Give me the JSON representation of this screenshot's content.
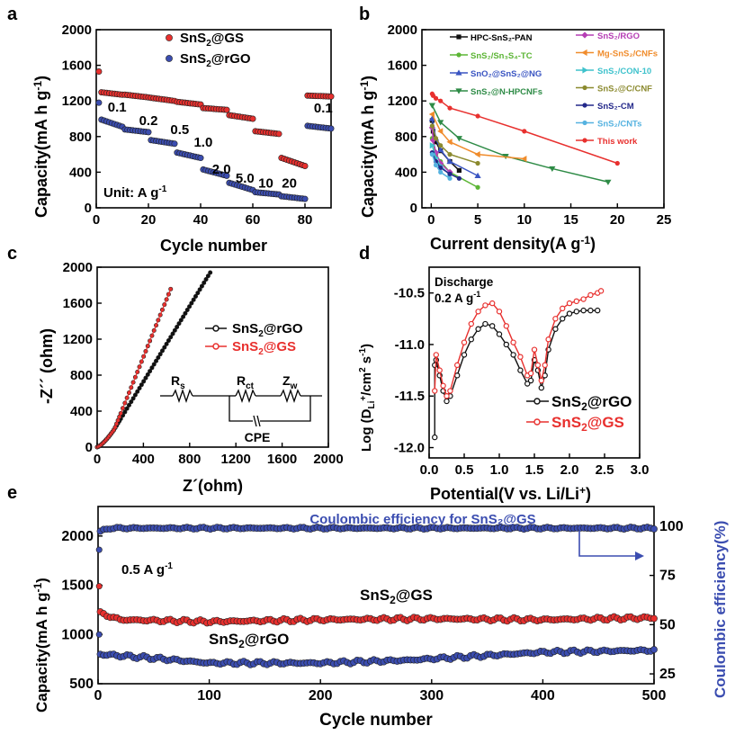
{
  "chart_data": [
    {
      "panel": "a",
      "type": "scatter",
      "xlabel": "Cycle number",
      "ylabel": "Capacity(mA h g",
      "ylabel_sup": "-1",
      "ylabel_end": ")",
      "xlim": [
        0,
        90
      ],
      "ylim": [
        0,
        2000
      ],
      "xticks": [
        "0",
        "20",
        "40",
        "60",
        "80"
      ],
      "yticks": [
        "0",
        "400",
        "800",
        "1200",
        "1600",
        "2000"
      ],
      "legend_position": "top-right",
      "unit_label": "Unit: A g",
      "unit_sup": "-1",
      "rate_labels": [
        "0.1",
        "0.2",
        "0.5",
        "1.0",
        "2.0",
        "5.0",
        "10",
        "20",
        "0.1"
      ],
      "rate_label_pos": [
        [
          8,
          1080
        ],
        [
          20,
          930
        ],
        [
          32,
          830
        ],
        [
          41,
          685
        ],
        [
          48,
          385
        ],
        [
          57,
          285
        ],
        [
          65,
          225
        ],
        [
          74,
          225
        ],
        [
          87,
          1070
        ]
      ],
      "rate_steps": [
        {
          "start": 1,
          "end": 10
        },
        {
          "start": 11,
          "end": 20
        },
        {
          "start": 21,
          "end": 30
        },
        {
          "start": 31,
          "end": 40
        },
        {
          "start": 41,
          "end": 50
        },
        {
          "start": 51,
          "end": 60
        },
        {
          "start": 61,
          "end": 70
        },
        {
          "start": 71,
          "end": 80
        },
        {
          "start": 81,
          "end": 90
        }
      ],
      "series": [
        {
          "name_main": "SnS",
          "name_sub": "2",
          "name_rest": "@GS",
          "color": "#e8302e",
          "legend_marker_color": "#e8302e",
          "first_value": 1530,
          "steps": [
            [
              1300,
              1270
            ],
            [
              1270,
              1240
            ],
            [
              1235,
              1200
            ],
            [
              1190,
              1160
            ],
            [
              1120,
              1100
            ],
            [
              1040,
              1000
            ],
            [
              860,
              830
            ],
            [
              560,
              470
            ],
            [
              1260,
              1250
            ]
          ]
        },
        {
          "name_main": "SnS",
          "name_sub": "2",
          "name_rest": "@rGO",
          "color": "#3b4db0",
          "legend_marker_color": "#3b4db0",
          "first_value": 1180,
          "steps": [
            [
              1000,
              910
            ],
            [
              880,
              850
            ],
            [
              760,
              720
            ],
            [
              620,
              560
            ],
            [
              430,
              360
            ],
            [
              280,
              200
            ],
            [
              175,
              150
            ],
            [
              130,
              100
            ],
            [
              920,
              890
            ]
          ]
        }
      ]
    },
    {
      "panel": "b",
      "type": "line",
      "xlabel": "Current density(A g",
      "xlabel_sup": "-1",
      "xlabel_end": ")",
      "ylabel": "Capacity(mA h g",
      "ylabel_sup": "-1",
      "ylabel_end": ")",
      "xlim": [
        -1,
        25
      ],
      "ylim": [
        0,
        2000
      ],
      "xticks": [
        "0",
        "5",
        "10",
        "15",
        "20",
        "25"
      ],
      "yticks": [
        "0",
        "400",
        "800",
        "1200",
        "1600",
        "2000"
      ],
      "series": [
        {
          "name": "HPC-SnS₂-PAN",
          "color": "#111111",
          "marker": "square",
          "x": [
            0.1,
            0.2,
            0.5,
            1,
            2,
            3
          ],
          "y": [
            980,
            860,
            740,
            640,
            520,
            420
          ]
        },
        {
          "name": "SnS₂/Sn₃S₄-TC",
          "color": "#5cb535",
          "marker": "circle",
          "x": [
            0.1,
            0.5,
            1,
            2,
            5
          ],
          "y": [
            780,
            600,
            520,
            400,
            230
          ]
        },
        {
          "name": "SnO₂@SnS₂@NG",
          "color": "#3a55c2",
          "marker": "triangle",
          "x": [
            0.1,
            0.5,
            1,
            2,
            5
          ],
          "y": [
            1000,
            780,
            650,
            520,
            360
          ]
        },
        {
          "name": "SnS₂@N-HPCNFs",
          "color": "#2e8b46",
          "marker": "triangle-down",
          "x": [
            0.1,
            1,
            3,
            8,
            13,
            19
          ],
          "y": [
            1150,
            960,
            780,
            580,
            440,
            290
          ]
        },
        {
          "name": "SnS₂/RGO",
          "color": "#b63fb5",
          "marker": "diamond",
          "x": [
            0.1,
            0.2,
            0.5,
            1,
            2
          ],
          "y": [
            900,
            760,
            620,
            500,
            400
          ]
        },
        {
          "name": "Mg-SnS₂/CNFs",
          "color": "#f08c2c",
          "marker": "triangle-left",
          "x": [
            0.1,
            1,
            2,
            5,
            10
          ],
          "y": [
            1050,
            860,
            740,
            600,
            550
          ]
        },
        {
          "name": "SnS₂/CON-10",
          "color": "#3ec2cc",
          "marker": "triangle-right",
          "x": [
            0.1,
            0.5,
            1,
            2
          ],
          "y": [
            700,
            560,
            470,
            370
          ]
        },
        {
          "name": "SnS₂@C/CNF",
          "color": "#8b8a2f",
          "marker": "hexagon",
          "x": [
            0.1,
            0.5,
            1,
            2,
            5
          ],
          "y": [
            920,
            780,
            700,
            600,
            500
          ]
        },
        {
          "name": "SnS₂-CM",
          "color": "#23288a",
          "marker": "star",
          "x": [
            0.1,
            0.5,
            1,
            2,
            3
          ],
          "y": [
            620,
            520,
            450,
            380,
            330
          ]
        },
        {
          "name": "SnS₂/CNTs",
          "color": "#55b2e0",
          "marker": "pentagon",
          "x": [
            0.1,
            0.5,
            1,
            2
          ],
          "y": [
            600,
            480,
            400,
            330
          ]
        },
        {
          "name": "This work",
          "color": "#e8302e",
          "marker": "circle",
          "x": [
            0.1,
            0.2,
            0.5,
            1,
            2,
            5,
            10,
            20
          ],
          "y": [
            1280,
            1260,
            1230,
            1200,
            1120,
            1030,
            860,
            500
          ]
        }
      ]
    },
    {
      "panel": "c",
      "type": "scatter",
      "xlabel": "Z´(ohm)",
      "ylabel": "-Z´´ (ohm)",
      "xlim": [
        0,
        2000
      ],
      "ylim": [
        0,
        2000
      ],
      "xticks": [
        "0",
        "400",
        "800",
        "1200",
        "1600",
        "2000"
      ],
      "yticks": [
        "0",
        "400",
        "800",
        "1200",
        "1600",
        "2000"
      ],
      "legend_position": "middle-right",
      "circuit_labels": {
        "rs": "R",
        "rs_sub": "s",
        "rct": "R",
        "rct_sub": "ct",
        "zw": "Z",
        "zw_sub": "w",
        "cpe": "CPE"
      },
      "series": [
        {
          "name_main": "SnS",
          "name_sub": "2",
          "name_rest": "@rGO",
          "color": "#111111",
          "x0": 10,
          "k": 2.1,
          "x_end": 980
        },
        {
          "name_main": "SnS",
          "name_sub": "2",
          "name_rest": "@GS",
          "color": "#e8302e",
          "x0": 5,
          "k": 3.2,
          "x_end": 640
        }
      ]
    },
    {
      "panel": "d",
      "type": "line",
      "xlabel": "Potential(V vs. Li/Li",
      "xlabel_sup": "+",
      "xlabel_end": ")",
      "ylabel_parts": [
        "Log (D",
        "Li",
        "+",
        "/cm",
        "2",
        " s",
        "-1",
        ")"
      ],
      "xlim": [
        0,
        3.0
      ],
      "ylim": [
        -12.1,
        -10.25
      ],
      "xticks": [
        "0.0",
        "0.5",
        "1.0",
        "1.5",
        "2.0",
        "2.5",
        "3.0"
      ],
      "yticks": [
        "-12.0",
        "-11.5",
        "-11.0",
        "-10.5"
      ],
      "annotation_1": "Discharge",
      "annotation_2": "0.2 A g",
      "annotation_2_sup": "-1",
      "legend_position": "bottom-right",
      "series": [
        {
          "name_main": "SnS",
          "name_sub": "2",
          "name_rest": "@rGO",
          "color": "#111111",
          "x": [
            0.08,
            0.08,
            0.1,
            0.15,
            0.2,
            0.25,
            0.3,
            0.4,
            0.5,
            0.6,
            0.7,
            0.8,
            0.9,
            1.0,
            1.1,
            1.2,
            1.3,
            1.4,
            1.45,
            1.5,
            1.55,
            1.6,
            1.65,
            1.7,
            1.8,
            1.9,
            2.0,
            2.1,
            2.2,
            2.3,
            2.4
          ],
          "y": [
            -11.9,
            -11.2,
            -11.15,
            -11.3,
            -11.45,
            -11.55,
            -11.5,
            -11.3,
            -11.1,
            -10.95,
            -10.85,
            -10.8,
            -10.82,
            -10.9,
            -11.0,
            -11.1,
            -11.25,
            -11.38,
            -11.35,
            -11.15,
            -11.25,
            -11.42,
            -11.3,
            -11.05,
            -10.85,
            -10.75,
            -10.7,
            -10.68,
            -10.67,
            -10.67,
            -10.67
          ]
        },
        {
          "name_main": "SnS",
          "name_sub": "2",
          "name_rest": "@GS",
          "color": "#e8302e",
          "x": [
            0.08,
            0.1,
            0.15,
            0.2,
            0.25,
            0.3,
            0.4,
            0.5,
            0.6,
            0.7,
            0.8,
            0.9,
            1.0,
            1.1,
            1.2,
            1.3,
            1.4,
            1.45,
            1.5,
            1.55,
            1.6,
            1.65,
            1.7,
            1.8,
            1.9,
            2.0,
            2.1,
            2.2,
            2.3,
            2.4,
            2.45
          ],
          "y": [
            -11.45,
            -11.1,
            -11.25,
            -11.4,
            -11.5,
            -11.45,
            -11.2,
            -10.98,
            -10.8,
            -10.68,
            -10.62,
            -10.6,
            -10.68,
            -10.82,
            -10.98,
            -11.12,
            -11.3,
            -11.28,
            -11.05,
            -11.2,
            -11.35,
            -11.2,
            -10.95,
            -10.75,
            -10.65,
            -10.6,
            -10.58,
            -10.56,
            -10.52,
            -10.5,
            -10.48
          ]
        }
      ]
    },
    {
      "panel": "e",
      "type": "scatter",
      "xlabel": "Cycle number",
      "ylabel": "Capacity(mA h g",
      "ylabel_sup": "-1",
      "ylabel_end": ")",
      "y2label": "Coulombic efficiency(%)",
      "xlim": [
        0,
        500
      ],
      "ylim": [
        500,
        2300
      ],
      "y2lim": [
        20,
        110
      ],
      "xticks": [
        "0",
        "100",
        "200",
        "300",
        "400",
        "500"
      ],
      "yticks": [
        "500",
        "1000",
        "1500",
        "2000"
      ],
      "y2ticks": [
        "25",
        "50",
        "75",
        "100"
      ],
      "rate_label": "0.5 A g",
      "rate_label_sup": "-1",
      "ce_label": "Coulombic efficiency for SnS₂@GS",
      "series": [
        {
          "name_main": "SnS",
          "name_sub": "2",
          "name_rest": "@GS",
          "color": "#e8302e",
          "first_value": 1490,
          "profile": [
            [
              1,
              1220
            ],
            [
              20,
              1150
            ],
            [
              100,
              1130
            ],
            [
              200,
              1150
            ],
            [
              300,
              1160
            ],
            [
              400,
              1150
            ],
            [
              500,
              1170
            ]
          ]
        },
        {
          "name_main": "SnS",
          "name_sub": "2",
          "name_rest": "@rGO",
          "color": "#3b4db0",
          "first_value": 1000,
          "profile": [
            [
              1,
              800
            ],
            [
              50,
              760
            ],
            [
              100,
              710
            ],
            [
              200,
              710
            ],
            [
              280,
              740
            ],
            [
              400,
              820
            ],
            [
              500,
              840
            ]
          ]
        },
        {
          "name": "Coulombic efficiency",
          "color": "#3b4db0",
          "axis": "right",
          "first_value": 88,
          "profile": [
            [
              1,
              97
            ],
            [
              10,
              99
            ],
            [
              500,
              99
            ]
          ]
        }
      ]
    }
  ],
  "panel_letters": [
    "a",
    "b",
    "c",
    "d",
    "e"
  ]
}
